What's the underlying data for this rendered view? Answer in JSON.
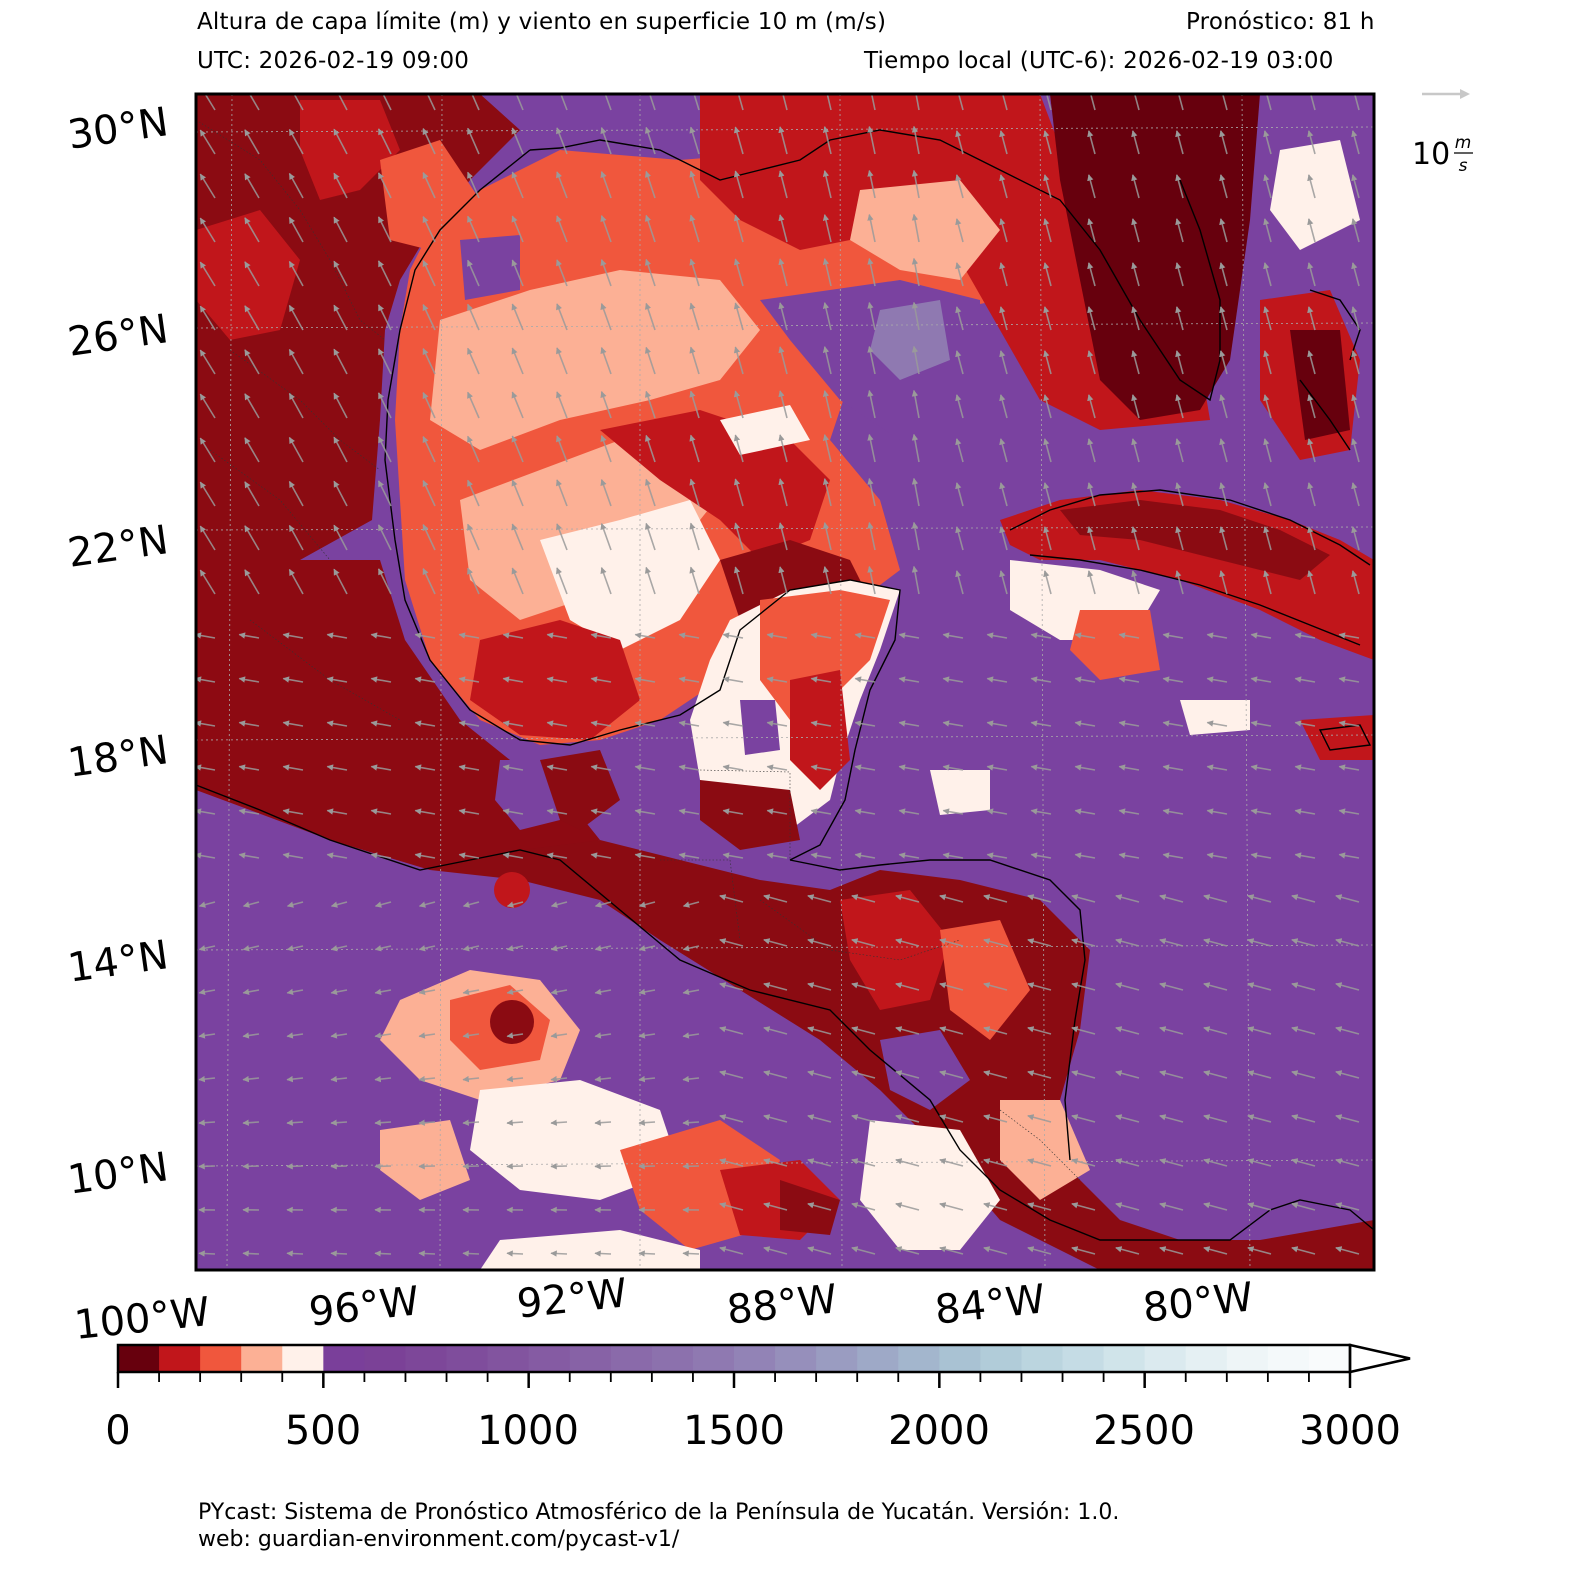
{
  "header": {
    "title": "Altura de capa límite (m) y viento en superficie 10 m (m/s)",
    "forecast": "Pronóstico: 81 h",
    "utc": "UTC:  2026-02-19 09:00",
    "local_time": "Tiempo local (UTC-6): 2026-02-19 03:00"
  },
  "map": {
    "lat_labels": [
      "30°N",
      "26°N",
      "22°N",
      "18°N",
      "14°N",
      "10°N"
    ],
    "lon_labels": [
      "100°W",
      "96°W",
      "92°W",
      "88°W",
      "84°W",
      "80°W"
    ],
    "region_labels": [],
    "wind_key": {
      "label_value": "10",
      "label_unit_num": "m",
      "label_unit_den": "s"
    }
  },
  "colorbar": {
    "tick_labels": [
      "0",
      "500",
      "1000",
      "1500",
      "2000",
      "2500",
      "3000"
    ],
    "colors": [
      "#67000d",
      "#c1161b",
      "#f0573d",
      "#fcb095",
      "#fff1ea",
      "#7a3f9a",
      "#7b4197",
      "#7d4799",
      "#7f4d9c",
      "#82549f",
      "#855ba3",
      "#8762a6",
      "#8a6aaa",
      "#8c71ad",
      "#8f79b1",
      "#9283b6",
      "#968fbb",
      "#9a9cc1",
      "#9ea9c7",
      "#a3b6cd",
      "#a9c2d3",
      "#b1ccd9",
      "#bbd5df",
      "#c5dce5",
      "#d0e4ea",
      "#dbeaef",
      "#e5f0f3",
      "#eef5f7",
      "#f4f9fa",
      "#f9fbfc"
    ]
  },
  "footer": {
    "line1": "PYcast: Sistema de Pronóstico Atmosférico de la Península de Yucatán. Versión: 1.0.",
    "line2": "web: guardian-environment.com/pycast-v1/"
  }
}
